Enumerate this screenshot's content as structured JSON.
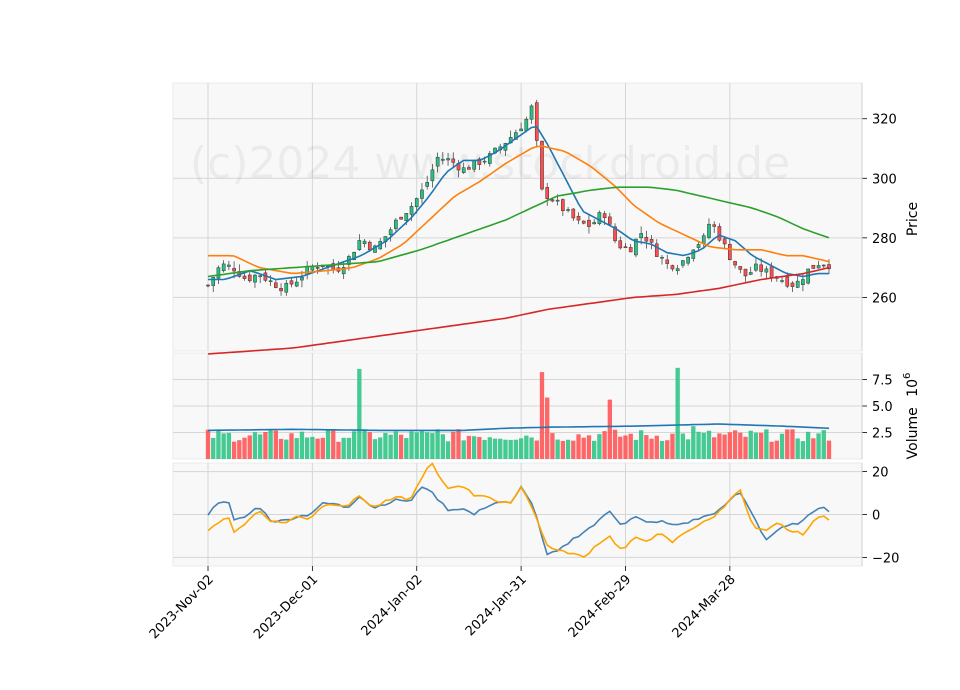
{
  "watermark": "(c)2024 www.stockdroid.de",
  "colors": {
    "up": "#26c281",
    "down": "#ff4d4d",
    "ma_fast": "#1f77b4",
    "ma_mid": "#ff7f0e",
    "ma_slow": "#2ca02c",
    "ma_long": "#d62728",
    "osc_a": "#4682b4",
    "osc_b": "#ffa500",
    "panel_bg": "#f8f8f8",
    "grid": "#d6d6d6"
  },
  "chart_data": [
    {
      "type": "candlestick",
      "panel": "price",
      "ylabel": "Price",
      "ylim": [
        242,
        332
      ],
      "yticks": [
        260,
        280,
        300,
        320
      ],
      "grid": true,
      "x_ticks": [
        "2023-Nov-02",
        "2023-Dec-01",
        "2024-Jan-02",
        "2024-Jan-31",
        "2024-Feb-29",
        "2024-Mar-28"
      ],
      "x_tick_index": [
        0,
        20,
        40,
        60,
        80,
        100
      ],
      "n_sessions": 120,
      "close_keypoints": [
        [
          0,
          264
        ],
        [
          3,
          271
        ],
        [
          6,
          270
        ],
        [
          9,
          266
        ],
        [
          12,
          268
        ],
        [
          15,
          265
        ],
        [
          18,
          263
        ],
        [
          21,
          266
        ],
        [
          24,
          270
        ],
        [
          27,
          271
        ],
        [
          30,
          269
        ],
        [
          33,
          273
        ],
        [
          36,
          280
        ],
        [
          39,
          276
        ],
        [
          42,
          281
        ],
        [
          45,
          287
        ],
        [
          48,
          291
        ],
        [
          51,
          297
        ],
        [
          54,
          307
        ],
        [
          57,
          306
        ],
        [
          60,
          303
        ],
        [
          63,
          305
        ],
        [
          66,
          307
        ],
        [
          69,
          311
        ],
        [
          72,
          315
        ],
        [
          75,
          320
        ],
        [
          76,
          324
        ],
        [
          77,
          318
        ],
        [
          78,
          296
        ],
        [
          81,
          293
        ],
        [
          84,
          289
        ],
        [
          87,
          285
        ],
        [
          90,
          284
        ],
        [
          93,
          289
        ],
        [
          96,
          278
        ],
        [
          99,
          276
        ],
        [
          102,
          282
        ],
        [
          105,
          276
        ],
        [
          108,
          271
        ],
        [
          111,
          271
        ],
        [
          114,
          277
        ],
        [
          117,
          280
        ],
        [
          118,
          286
        ],
        [
          120,
          281
        ],
        [
          123,
          273
        ],
        [
          126,
          267
        ],
        [
          129,
          270
        ],
        [
          132,
          268
        ],
        [
          135,
          266
        ],
        [
          138,
          264
        ],
        [
          141,
          269
        ],
        [
          144,
          272
        ],
        [
          146,
          271
        ]
      ],
      "series": [
        {
          "name": "",
          "kind": "moving-average",
          "color": "ma_fast",
          "keypoints": [
            [
              0,
              266
            ],
            [
              4,
              266
            ],
            [
              10,
              269
            ],
            [
              16,
              266
            ],
            [
              22,
              267
            ],
            [
              30,
              271
            ],
            [
              36,
              274
            ],
            [
              42,
              279
            ],
            [
              48,
              287
            ],
            [
              52,
              294
            ],
            [
              56,
              302
            ],
            [
              60,
              306
            ],
            [
              64,
              306
            ],
            [
              68,
              309
            ],
            [
              72,
              313
            ],
            [
              75,
              316
            ],
            [
              77,
              318
            ],
            [
              80,
              311
            ],
            [
              84,
              300
            ],
            [
              88,
              289
            ],
            [
              92,
              286
            ],
            [
              96,
              283
            ],
            [
              100,
              279
            ],
            [
              104,
              278
            ],
            [
              108,
              275
            ],
            [
              112,
              274
            ],
            [
              116,
              276
            ],
            [
              120,
              281
            ],
            [
              124,
              279
            ],
            [
              128,
              274
            ],
            [
              132,
              271
            ],
            [
              136,
              268
            ],
            [
              140,
              267
            ],
            [
              143,
              268
            ],
            [
              146,
              268
            ]
          ]
        },
        {
          "name": "",
          "kind": "moving-average",
          "color": "ma_mid",
          "keypoints": [
            [
              0,
              274
            ],
            [
              6,
              274
            ],
            [
              12,
              270
            ],
            [
              20,
              268
            ],
            [
              28,
              269
            ],
            [
              34,
              270
            ],
            [
              40,
              273
            ],
            [
              46,
              278
            ],
            [
              52,
              286
            ],
            [
              58,
              294
            ],
            [
              64,
              299
            ],
            [
              70,
              305
            ],
            [
              76,
              310
            ],
            [
              78,
              311
            ],
            [
              84,
              309
            ],
            [
              90,
              304
            ],
            [
              96,
              297
            ],
            [
              100,
              291
            ],
            [
              106,
              285
            ],
            [
              112,
              281
            ],
            [
              118,
              277
            ],
            [
              124,
              276
            ],
            [
              130,
              276
            ],
            [
              136,
              274
            ],
            [
              140,
              274
            ],
            [
              146,
              272
            ]
          ]
        },
        {
          "name": "",
          "kind": "moving-average",
          "color": "ma_slow",
          "keypoints": [
            [
              0,
              267
            ],
            [
              10,
              269
            ],
            [
              20,
              270
            ],
            [
              30,
              271
            ],
            [
              40,
              272
            ],
            [
              50,
              276
            ],
            [
              60,
              281
            ],
            [
              70,
              286
            ],
            [
              76,
              290
            ],
            [
              82,
              294
            ],
            [
              90,
              296
            ],
            [
              96,
              297
            ],
            [
              104,
              297
            ],
            [
              110,
              296
            ],
            [
              116,
              294
            ],
            [
              122,
              292
            ],
            [
              128,
              290
            ],
            [
              134,
              287
            ],
            [
              140,
              283
            ],
            [
              146,
              280
            ]
          ]
        },
        {
          "name": "",
          "kind": "moving-average",
          "color": "ma_long",
          "keypoints": [
            [
              0,
              241
            ],
            [
              10,
              242
            ],
            [
              20,
              243
            ],
            [
              30,
              245
            ],
            [
              40,
              247
            ],
            [
              50,
              249
            ],
            [
              60,
              251
            ],
            [
              70,
              253
            ],
            [
              80,
              256
            ],
            [
              90,
              258
            ],
            [
              100,
              260
            ],
            [
              110,
              261
            ],
            [
              120,
              263
            ],
            [
              130,
              266
            ],
            [
              140,
              268
            ],
            [
              146,
              270
            ]
          ]
        }
      ]
    },
    {
      "type": "bar",
      "panel": "volume",
      "ylabel": "Volume",
      "ylabel_exponent": "10",
      "ylabel_exponent_power": "6",
      "ylim": [
        0,
        10
      ],
      "yticks": [
        2.5,
        5.0,
        7.5
      ],
      "ytick_labels": [
        "2.5",
        "5.0",
        "7.5"
      ],
      "grid": true,
      "volume_base": 2.1,
      "volume_spikes": [
        [
          36,
          8.5
        ],
        [
          54,
          2.8
        ],
        [
          78,
          5.5
        ],
        [
          79,
          8.2
        ],
        [
          80,
          5.8
        ],
        [
          94,
          5.6
        ],
        [
          111,
          8.6
        ],
        [
          114,
          3.1
        ]
      ],
      "average": {
        "name": "",
        "color": "ma_fast",
        "keypoints": [
          [
            0,
            2.7
          ],
          [
            20,
            2.8
          ],
          [
            40,
            2.7
          ],
          [
            60,
            2.7
          ],
          [
            70,
            2.9
          ],
          [
            80,
            3.0
          ],
          [
            100,
            3.1
          ],
          [
            110,
            3.2
          ],
          [
            120,
            3.3
          ],
          [
            135,
            3.1
          ],
          [
            146,
            2.9
          ]
        ]
      }
    },
    {
      "type": "line",
      "panel": "oscillator",
      "ylim": [
        -24,
        24
      ],
      "yticks": [
        -20,
        0,
        20
      ],
      "ytick_labels": [
        "−20",
        "0",
        "20"
      ],
      "grid": true,
      "series": [
        {
          "name": "",
          "color": "osc_a",
          "keypoints": [
            [
              0,
              0
            ],
            [
              3,
              7
            ],
            [
              5,
              5
            ],
            [
              6,
              -3
            ],
            [
              9,
              -1
            ],
            [
              12,
              4
            ],
            [
              15,
              -3
            ],
            [
              18,
              -3
            ],
            [
              21,
              -1
            ],
            [
              24,
              0
            ],
            [
              27,
              5
            ],
            [
              30,
              5
            ],
            [
              33,
              3
            ],
            [
              36,
              9
            ],
            [
              39,
              3
            ],
            [
              42,
              5
            ],
            [
              45,
              7
            ],
            [
              48,
              6
            ],
            [
              51,
              14
            ],
            [
              54,
              8
            ],
            [
              57,
              2
            ],
            [
              60,
              3
            ],
            [
              63,
              0
            ],
            [
              66,
              4
            ],
            [
              69,
              6
            ],
            [
              72,
              5
            ],
            [
              74,
              13
            ],
            [
              76,
              8
            ],
            [
              78,
              -2
            ],
            [
              80,
              -19
            ],
            [
              83,
              -17
            ],
            [
              86,
              -12
            ],
            [
              89,
              -8
            ],
            [
              92,
              -4
            ],
            [
              95,
              2
            ],
            [
              98,
              -5
            ],
            [
              101,
              -1
            ],
            [
              104,
              -4
            ],
            [
              107,
              -3
            ],
            [
              110,
              -5
            ],
            [
              113,
              -4
            ],
            [
              116,
              -2
            ],
            [
              119,
              0
            ],
            [
              122,
              3
            ],
            [
              124,
              8
            ],
            [
              126,
              10
            ],
            [
              129,
              0
            ],
            [
              132,
              -12
            ],
            [
              135,
              -7
            ],
            [
              138,
              -5
            ],
            [
              141,
              -3
            ],
            [
              144,
              3
            ],
            [
              146,
              4
            ],
            [
              147,
              1
            ]
          ]
        },
        {
          "name": "",
          "color": "osc_b",
          "keypoints": [
            [
              0,
              -7
            ],
            [
              3,
              -3
            ],
            [
              5,
              -2
            ],
            [
              6,
              -8
            ],
            [
              9,
              -4
            ],
            [
              12,
              2
            ],
            [
              15,
              -3
            ],
            [
              18,
              -4
            ],
            [
              21,
              -1
            ],
            [
              24,
              -2
            ],
            [
              27,
              4
            ],
            [
              30,
              5
            ],
            [
              33,
              4
            ],
            [
              36,
              9
            ],
            [
              39,
              3
            ],
            [
              42,
              6
            ],
            [
              45,
              8
            ],
            [
              48,
              7
            ],
            [
              51,
              19
            ],
            [
              53,
              24
            ],
            [
              55,
              16
            ],
            [
              57,
              12
            ],
            [
              60,
              14
            ],
            [
              63,
              9
            ],
            [
              66,
              9
            ],
            [
              69,
              5
            ],
            [
              72,
              6
            ],
            [
              74,
              13
            ],
            [
              76,
              7
            ],
            [
              78,
              -3
            ],
            [
              80,
              -14
            ],
            [
              83,
              -17
            ],
            [
              86,
              -18
            ],
            [
              89,
              -20
            ],
            [
              92,
              -14
            ],
            [
              95,
              -10
            ],
            [
              98,
              -17
            ],
            [
              101,
              -11
            ],
            [
              104,
              -12
            ],
            [
              107,
              -9
            ],
            [
              110,
              -13
            ],
            [
              113,
              -8
            ],
            [
              116,
              -5
            ],
            [
              119,
              -2
            ],
            [
              122,
              3
            ],
            [
              124,
              9
            ],
            [
              126,
              11
            ],
            [
              129,
              -6
            ],
            [
              132,
              -8
            ],
            [
              135,
              -4
            ],
            [
              138,
              -8
            ],
            [
              141,
              -9
            ],
            [
              144,
              -2
            ],
            [
              146,
              0
            ],
            [
              147,
              -2
            ]
          ]
        }
      ]
    }
  ]
}
